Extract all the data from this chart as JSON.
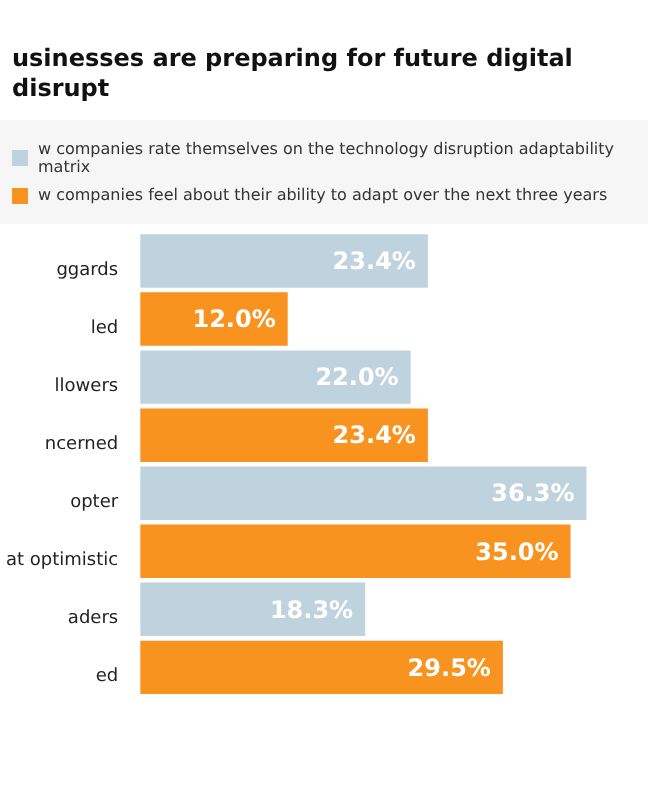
{
  "chart_data": {
    "type": "bar",
    "orientation": "horizontal",
    "title": "usinesses are preparing for future digital disrupt",
    "categories": [
      "ggards",
      "led",
      "llowers",
      "ncerned",
      "opter",
      "at optimistic",
      "aders",
      "ed"
    ],
    "series": [
      {
        "name": "w companies rate themselves on the technology disruption adaptability matrix",
        "color": "#bfd3de",
        "values": [
          23.4,
          null,
          22.0,
          null,
          36.3,
          null,
          18.3,
          null
        ],
        "value_labels": [
          "23.4%",
          null,
          "22.0%",
          null,
          "36.3%",
          null,
          "18.3%",
          null
        ]
      },
      {
        "name": "w companies feel about their ability to adapt over the next three years",
        "color": "#f7931e",
        "values": [
          null,
          12.0,
          null,
          23.4,
          null,
          35.0,
          null,
          29.5
        ],
        "value_labels": [
          null,
          "12.0%",
          null,
          "23.4%",
          null,
          "35.0%",
          null,
          "29.5%"
        ]
      }
    ],
    "legend": "top",
    "tick_labels": "y"
  }
}
